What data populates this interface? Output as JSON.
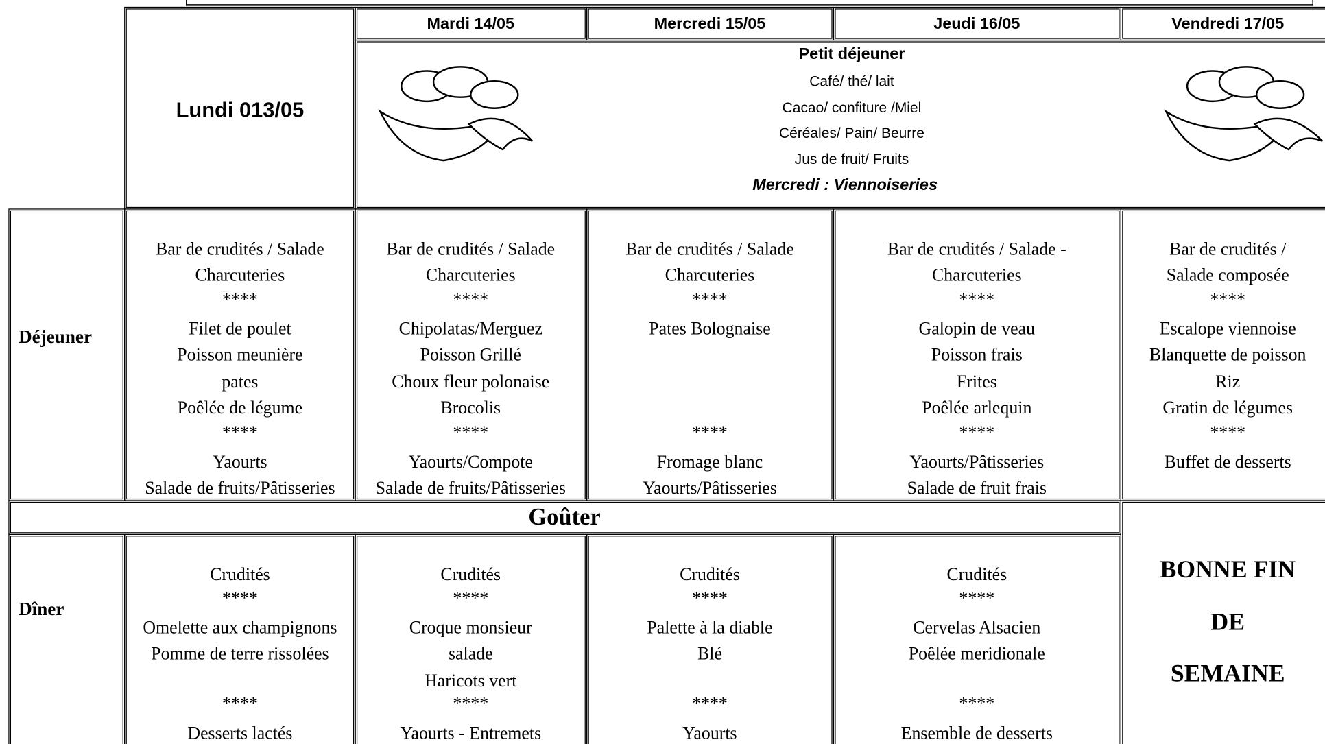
{
  "header": {
    "day_headers": [
      "Lundi 013/05",
      "Mardi 14/05",
      "Mercredi 15/05",
      "Jeudi 16/05",
      "Vendredi 17/05"
    ]
  },
  "breakfast": {
    "title": "Petit déjeuner",
    "items": [
      "Café/ thé/ lait",
      "Cacao/ confiture /Miel",
      "Céréales/ Pain/ Beurre",
      "Jus de fruit/ Fruits"
    ],
    "note": "Mercredi : Viennoiseries"
  },
  "separator": "****",
  "lunch": {
    "label": "Déjeuner",
    "days": [
      {
        "starter": [
          "Bar de crudités / Salade",
          "Charcuteries"
        ],
        "main": [
          "Filet de poulet",
          "Poisson meunière",
          "pates",
          "Poêlée de légume"
        ],
        "dessert": [
          "Yaourts",
          "Salade de fruits/Pâtisseries"
        ]
      },
      {
        "starter": [
          "Bar de crudités / Salade",
          "Charcuteries"
        ],
        "main": [
          "Chipolatas/Merguez",
          "Poisson Grillé",
          "Choux fleur polonaise",
          "Brocolis"
        ],
        "dessert": [
          "Yaourts/Compote",
          "Salade de fruits/Pâtisseries"
        ]
      },
      {
        "starter": [
          "Bar de crudités / Salade",
          "Charcuteries"
        ],
        "main": [
          "Pates Bolognaise"
        ],
        "dessert": [
          "Fromage blanc",
          "Yaourts/Pâtisseries"
        ]
      },
      {
        "starter": [
          "Bar de crudités / Salade -",
          "Charcuteries"
        ],
        "main": [
          "Galopin de veau",
          "Poisson frais",
          "Frites",
          "Poêlée arlequin"
        ],
        "dessert": [
          "Yaourts/Pâtisseries",
          "Salade de fruit frais"
        ]
      },
      {
        "starter": [
          "Bar de crudités /",
          "Salade composée"
        ],
        "main": [
          "Escalope viennoise",
          "Blanquette de poisson",
          "Riz",
          "Gratin de légumes"
        ],
        "dessert": [
          "Buffet de desserts"
        ]
      }
    ]
  },
  "snack": {
    "label": "Goûter"
  },
  "dinner": {
    "label": "Dîner",
    "days": [
      {
        "starter": [
          "Crudités"
        ],
        "main": [
          "Omelette aux champignons",
          "Pomme de terre rissolées"
        ],
        "dessert": [
          "Desserts lactés"
        ]
      },
      {
        "starter": [
          "Crudités"
        ],
        "main": [
          "Croque monsieur",
          "salade",
          "Haricots vert"
        ],
        "dessert": [
          "Yaourts - Entremets"
        ]
      },
      {
        "starter": [
          "Crudités"
        ],
        "main": [
          "Palette à la diable",
          "Blé"
        ],
        "dessert": [
          "Yaourts"
        ]
      },
      {
        "starter": [
          "Crudités"
        ],
        "main": [
          "Cervelas Alsacien",
          "Poêlée meridionale"
        ],
        "dessert": [
          "Ensemble de desserts"
        ]
      }
    ]
  },
  "weekend": {
    "lines": [
      "BONNE FIN",
      "DE",
      "SEMAINE"
    ]
  }
}
